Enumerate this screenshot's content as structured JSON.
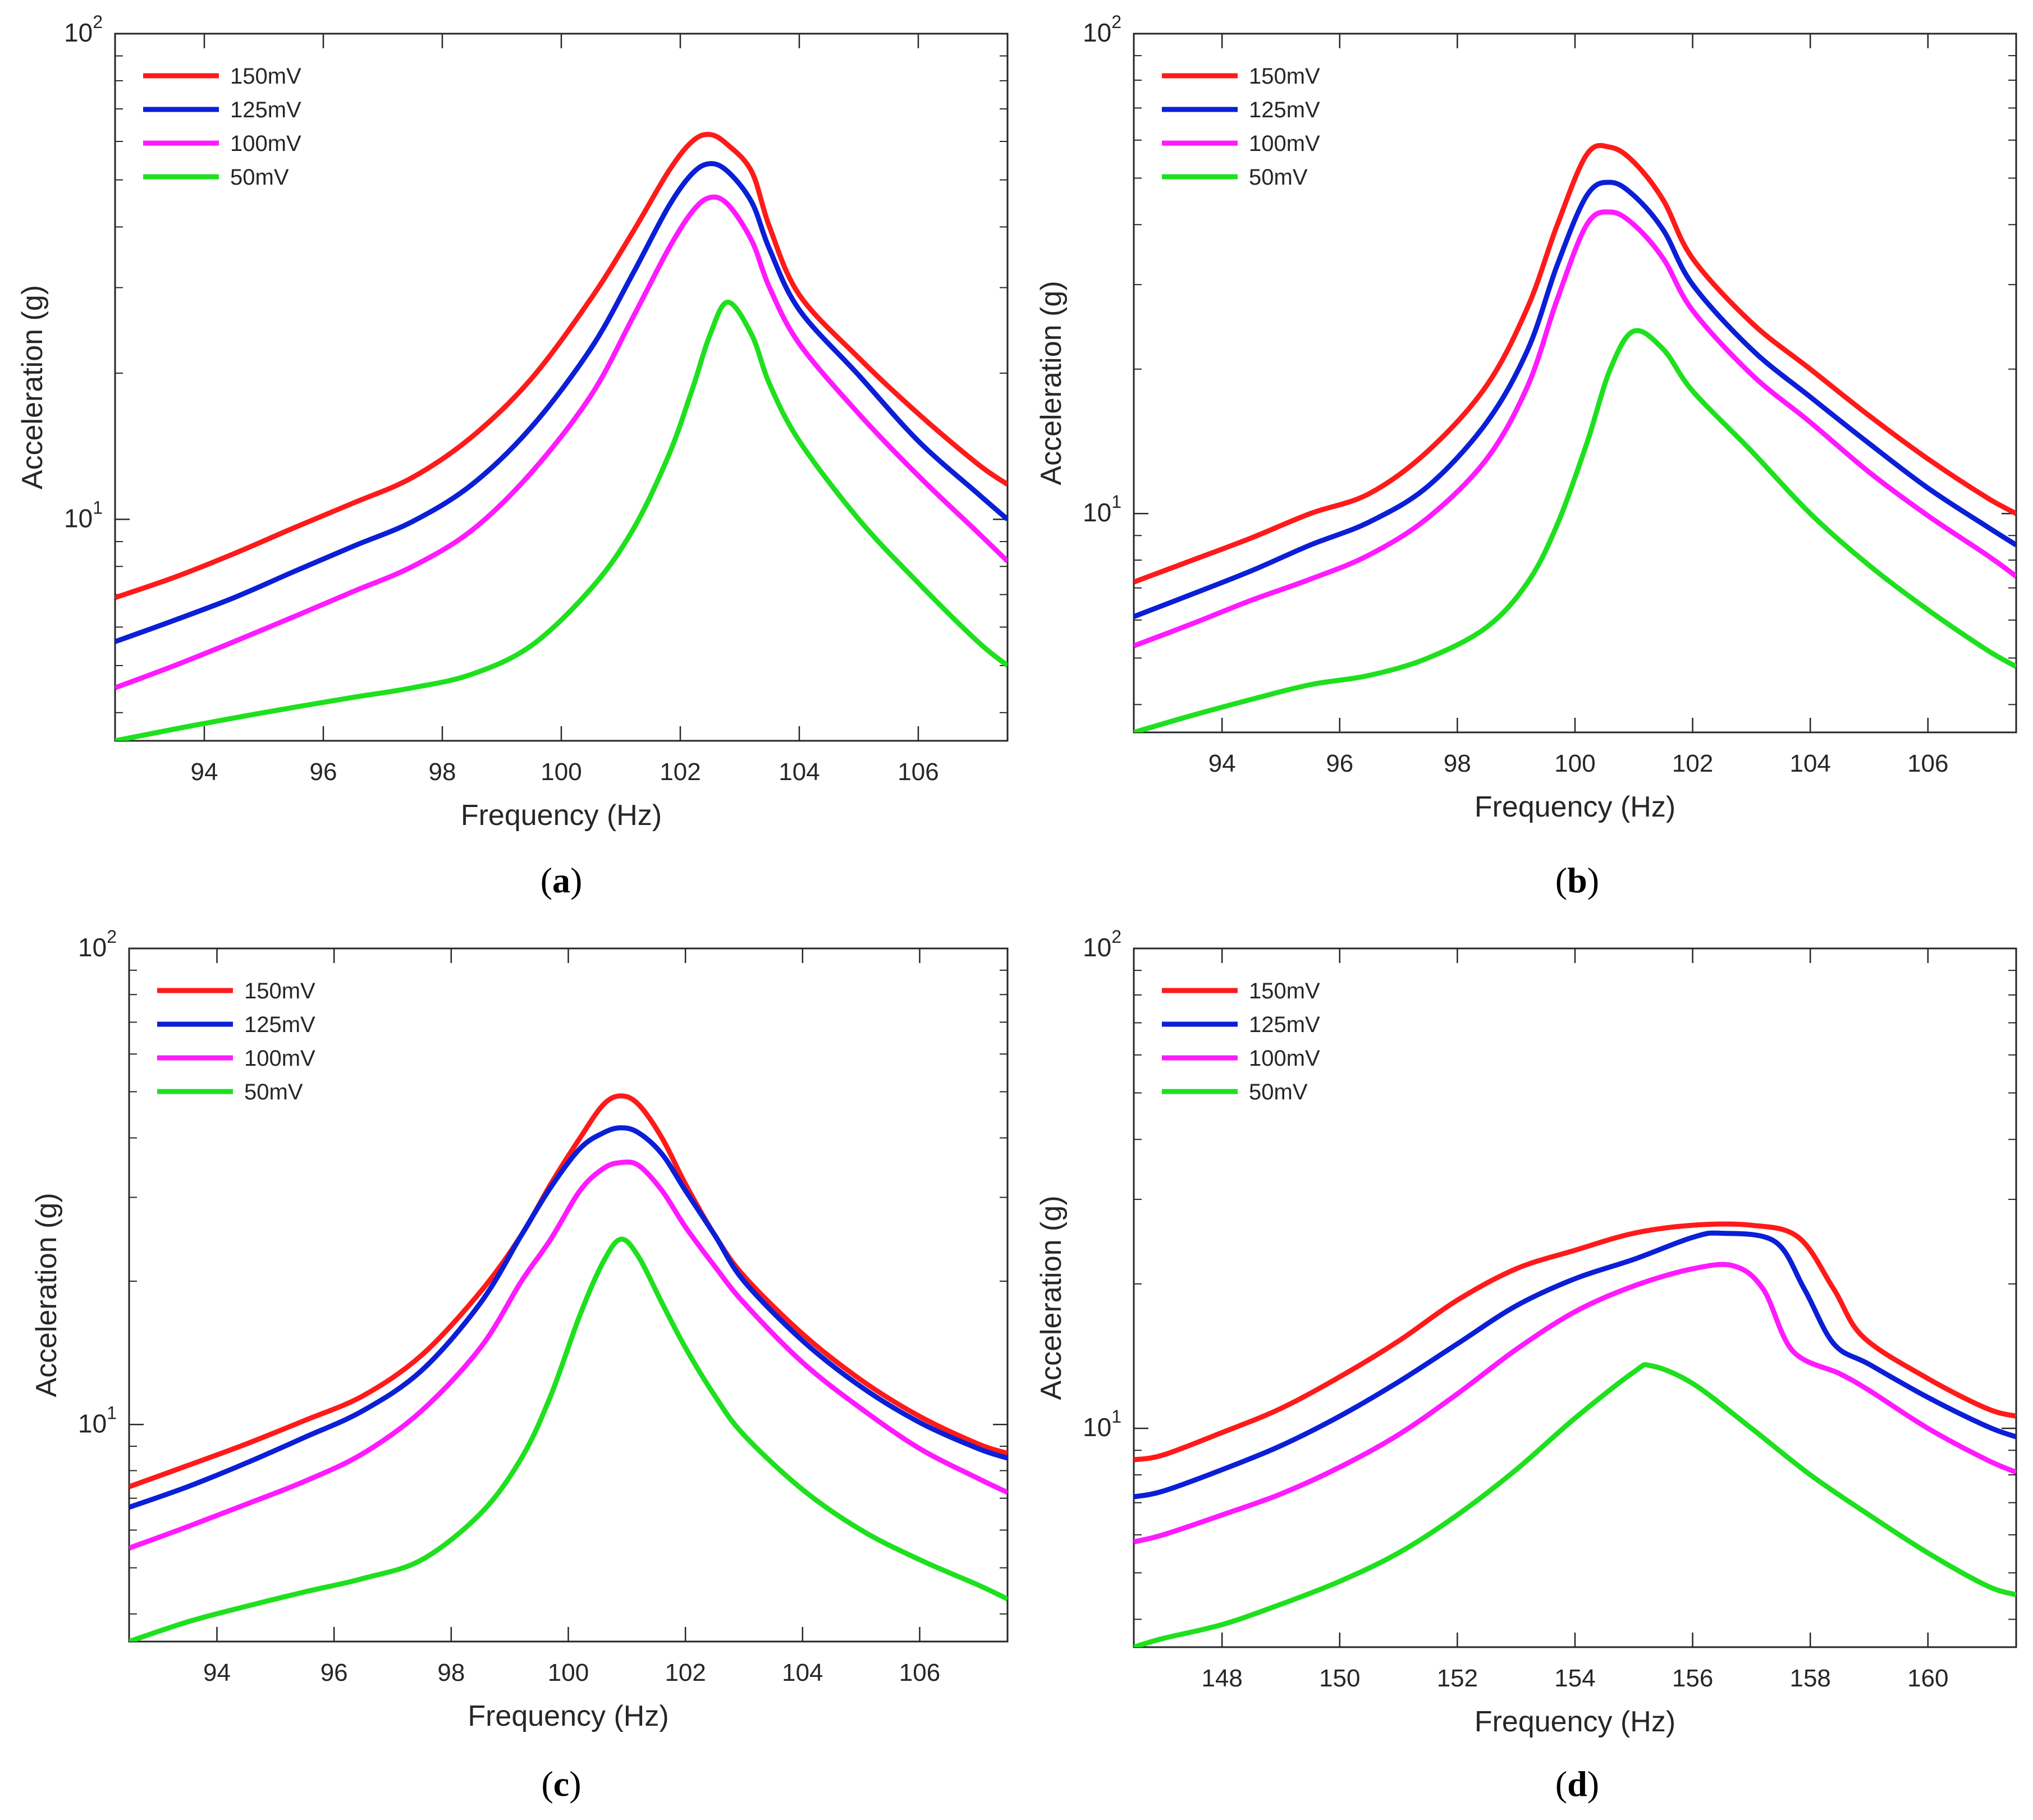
{
  "figure": {
    "panels": [
      {
        "caption_letter": "a"
      },
      {
        "caption_letter": "b"
      },
      {
        "caption_letter": "c"
      },
      {
        "caption_letter": "d"
      }
    ]
  },
  "chart_data": [
    {
      "type": "line",
      "panel": "a",
      "xlabel": "Frequency (Hz)",
      "ylabel": "Acceleration (g)",
      "yscale": "log",
      "xlim": [
        92.5,
        107.5
      ],
      "ylim": [
        3.5,
        100
      ],
      "xticks": [
        94,
        96,
        98,
        100,
        102,
        104,
        106
      ],
      "yticks": [
        {
          "value": 10,
          "base": "10",
          "exp": "1"
        },
        {
          "value": 100,
          "base": "10",
          "exp": "2"
        }
      ],
      "legend_position": "top-left",
      "series": [
        {
          "name": "150mV",
          "color": "#ff1a1a",
          "x": [
            92.5,
            93.5,
            94.5,
            95.5,
            96.5,
            97.5,
            98.5,
            99.5,
            100.5,
            101.2,
            101.8,
            102.2,
            102.5,
            102.8,
            103.2,
            103.5,
            104,
            105,
            106,
            107,
            107.5
          ],
          "y": [
            6.9,
            7.6,
            8.5,
            9.6,
            10.8,
            12.2,
            14.8,
            19.5,
            28.5,
            39,
            52,
            60,
            62,
            59,
            52,
            40,
            29,
            21.5,
            16.5,
            13,
            11.8
          ]
        },
        {
          "name": "125mV",
          "color": "#0a1fd6",
          "x": [
            92.5,
            93.5,
            94.5,
            95.5,
            96.5,
            97.5,
            98.5,
            99.5,
            100.5,
            101.2,
            101.8,
            102.2,
            102.5,
            102.8,
            103.2,
            103.5,
            104,
            105,
            106,
            107,
            107.5
          ],
          "y": [
            5.6,
            6.2,
            6.9,
            7.8,
            8.8,
            9.9,
            11.8,
            15.5,
            22.5,
            32,
            44,
            51.5,
            54,
            52,
            45,
            36,
            27,
            19.8,
            14.5,
            11.3,
            10
          ]
        },
        {
          "name": "100mV",
          "color": "#ff1aff",
          "x": [
            92.5,
            93.5,
            94.5,
            95.5,
            96.5,
            97.5,
            98.5,
            99.5,
            100.5,
            101.2,
            101.8,
            102.2,
            102.5,
            102.8,
            103.2,
            103.5,
            104,
            105,
            106,
            107,
            107.5
          ],
          "y": [
            4.5,
            5,
            5.6,
            6.3,
            7.1,
            8,
            9.5,
            12.5,
            18,
            26,
            36,
            43,
            46,
            44.5,
            37.5,
            30,
            23,
            16.5,
            12.3,
            9.4,
            8.2
          ]
        },
        {
          "name": "50mV",
          "color": "#1ee01e",
          "x": [
            92.5,
            93.5,
            94.5,
            95.5,
            96.5,
            97.5,
            98.5,
            99.5,
            100.5,
            101.2,
            101.8,
            102.2,
            102.5,
            102.8,
            103.2,
            103.5,
            104,
            105,
            106,
            107,
            107.5
          ],
          "y": [
            3.5,
            3.7,
            3.9,
            4.1,
            4.3,
            4.5,
            4.8,
            5.5,
            7.2,
            9.5,
            13.5,
            18.5,
            24,
            28,
            24,
            19,
            14.5,
            10,
            7.4,
            5.6,
            5
          ]
        }
      ]
    },
    {
      "type": "line",
      "panel": "b",
      "xlabel": "Frequency (Hz)",
      "ylabel": "Acceleration (g)",
      "yscale": "log",
      "xlim": [
        92.5,
        107.5
      ],
      "ylim": [
        3.5,
        100
      ],
      "xticks": [
        94,
        96,
        98,
        100,
        102,
        104,
        106
      ],
      "yticks": [
        {
          "value": 10,
          "base": "10",
          "exp": "1"
        },
        {
          "value": 100,
          "base": "10",
          "exp": "2"
        }
      ],
      "legend_position": "top-left",
      "series": [
        {
          "name": "150mV",
          "color": "#ff1a1a",
          "x": [
            92.5,
            93.5,
            94.5,
            95.5,
            96.5,
            97.5,
            98.5,
            99.2,
            99.7,
            100.2,
            100.6,
            101,
            101.5,
            102,
            103,
            104,
            105,
            106,
            107,
            107.5
          ],
          "y": [
            7.2,
            8,
            8.9,
            10,
            11,
            13.5,
            18.5,
            27,
            40,
            56,
            58,
            54,
            45,
            34,
            25,
            20,
            16,
            13,
            10.8,
            10
          ]
        },
        {
          "name": "125mV",
          "color": "#0a1fd6",
          "x": [
            92.5,
            93.5,
            94.5,
            95.5,
            96.5,
            97.5,
            98.5,
            99.2,
            99.7,
            100.2,
            100.6,
            101,
            101.5,
            102,
            103,
            104,
            105,
            106,
            107,
            107.5
          ],
          "y": [
            6.1,
            6.8,
            7.6,
            8.6,
            9.6,
            11.4,
            15.5,
            22,
            33,
            46,
            49,
            46,
            39,
            30,
            22,
            17.5,
            14,
            11.3,
            9.4,
            8.6
          ]
        },
        {
          "name": "100mV",
          "color": "#ff1aff",
          "x": [
            92.5,
            93.5,
            94.5,
            95.5,
            96.5,
            97.5,
            98.5,
            99.2,
            99.7,
            100.2,
            100.6,
            101,
            101.5,
            102,
            103,
            104,
            105,
            106,
            107,
            107.5
          ],
          "y": [
            5.3,
            5.9,
            6.6,
            7.3,
            8.2,
            9.8,
            13,
            18.5,
            28,
            40,
            42.5,
            40,
            34,
            26.5,
            19.5,
            15.5,
            12.2,
            9.9,
            8.2,
            7.4
          ]
        },
        {
          "name": "50mV",
          "color": "#1ee01e",
          "x": [
            92.5,
            93.5,
            94.5,
            95.5,
            96.5,
            97.5,
            98.5,
            99.2,
            99.7,
            100.2,
            100.6,
            101,
            101.5,
            102,
            103,
            104,
            105,
            106,
            107,
            107.5
          ],
          "y": [
            3.5,
            3.8,
            4.1,
            4.4,
            4.6,
            5,
            5.8,
            7.2,
            9.5,
            14,
            20,
            24,
            22,
            18,
            13.5,
            10,
            7.8,
            6.3,
            5.2,
            4.8
          ]
        }
      ]
    },
    {
      "type": "line",
      "panel": "c",
      "xlabel": "Frequency (Hz)",
      "ylabel": "Acceleration (g)",
      "yscale": "log",
      "xlim": [
        92.5,
        107.5
      ],
      "ylim": [
        3.5,
        100
      ],
      "xticks": [
        94,
        96,
        98,
        100,
        102,
        104,
        106
      ],
      "yticks": [
        {
          "value": 10,
          "base": "10",
          "exp": "1"
        },
        {
          "value": 100,
          "base": "10",
          "exp": "2"
        }
      ],
      "legend_position": "top-left",
      "series": [
        {
          "name": "150mV",
          "color": "#ff1a1a",
          "x": [
            92.5,
            93.5,
            94.5,
            95.5,
            96.5,
            97.5,
            98.5,
            99.2,
            99.7,
            100.2,
            100.6,
            100.9,
            101.2,
            101.6,
            102,
            102.5,
            103,
            104,
            105,
            106,
            107,
            107.5
          ],
          "y": [
            7.4,
            8.2,
            9.1,
            10.2,
            11.5,
            14,
            19,
            25,
            32,
            40,
            47,
            49,
            47,
            40,
            32,
            25,
            20.5,
            15.5,
            12.4,
            10.4,
            9.1,
            8.7
          ]
        },
        {
          "name": "125mV",
          "color": "#0a1fd6",
          "x": [
            92.5,
            93.5,
            94.5,
            95.5,
            96.5,
            97.5,
            98.5,
            99.2,
            99.7,
            100.2,
            100.6,
            100.9,
            101.2,
            101.6,
            102,
            102.5,
            103,
            104,
            105,
            106,
            107,
            107.5
          ],
          "y": [
            6.7,
            7.4,
            8.3,
            9.4,
            10.7,
            13,
            18,
            25,
            31.5,
            38,
            41,
            42,
            41,
            37,
            31,
            25,
            20,
            15,
            12,
            10.1,
            8.9,
            8.5
          ]
        },
        {
          "name": "100mV",
          "color": "#ff1aff",
          "x": [
            92.5,
            93.5,
            94.5,
            95.5,
            96.5,
            97.5,
            98.5,
            99.2,
            99.7,
            100.2,
            100.6,
            100.9,
            101.2,
            101.6,
            102,
            102.5,
            103,
            104,
            105,
            106,
            107,
            107.5
          ],
          "y": [
            5.5,
            6.1,
            6.8,
            7.6,
            8.7,
            10.7,
            14.5,
            20,
            24.5,
            31,
            34.5,
            35.5,
            35,
            31,
            26,
            21.5,
            18,
            13.5,
            10.8,
            8.9,
            7.7,
            7.2
          ]
        },
        {
          "name": "50mV",
          "color": "#1ee01e",
          "x": [
            92.5,
            93.5,
            94.5,
            95.5,
            96.5,
            97.5,
            98.5,
            99.2,
            99.7,
            100.2,
            100.6,
            100.9,
            101.2,
            101.6,
            102,
            102.5,
            103,
            104,
            105,
            106,
            107,
            107.5
          ],
          "y": [
            3.5,
            3.85,
            4.15,
            4.45,
            4.75,
            5.2,
            6.5,
            8.5,
            11.5,
            17,
            22,
            24.5,
            22.5,
            18,
            14.5,
            11.5,
            9.5,
            7.3,
            6,
            5.2,
            4.6,
            4.3
          ]
        }
      ]
    },
    {
      "type": "line",
      "panel": "d",
      "xlabel": "Frequency (Hz)",
      "ylabel": "Acceleration (g)",
      "yscale": "log",
      "xlim": [
        146.5,
        161.5
      ],
      "ylim": [
        3.5,
        100
      ],
      "xticks": [
        148,
        150,
        152,
        154,
        156,
        158,
        160
      ],
      "yticks": [
        {
          "value": 10,
          "base": "10",
          "exp": "1"
        },
        {
          "value": 100,
          "base": "10",
          "exp": "2"
        }
      ],
      "legend_position": "top-left",
      "series": [
        {
          "name": "150mV",
          "color": "#ff1a1a",
          "x": [
            146.5,
            147,
            148,
            149,
            150,
            151,
            152,
            153,
            154,
            155,
            156,
            157,
            157.8,
            158.4,
            158.9,
            160,
            161,
            161.5
          ],
          "y": [
            8.6,
            8.8,
            9.8,
            11,
            12.8,
            15.2,
            18.5,
            21.5,
            23.5,
            25.5,
            26.5,
            26.5,
            25,
            19.5,
            15.5,
            12.7,
            11,
            10.6
          ]
        },
        {
          "name": "125mV",
          "color": "#0a1fd6",
          "x": [
            146.5,
            147,
            148,
            149,
            150,
            151,
            152,
            153,
            154,
            155,
            156,
            156.5,
            157.4,
            157.9,
            158.4,
            159,
            160,
            161,
            161.5
          ],
          "y": [
            7.2,
            7.4,
            8.2,
            9.2,
            10.6,
            12.5,
            15,
            18,
            20.5,
            22.5,
            25,
            25.5,
            24.5,
            19.5,
            15,
            13.6,
            11.6,
            10.1,
            9.6
          ]
        },
        {
          "name": "100mV",
          "color": "#ff1aff",
          "x": [
            146.5,
            147,
            148,
            149,
            150,
            151,
            152,
            153,
            154,
            155,
            156,
            156.7,
            157.2,
            157.7,
            158.5,
            159,
            160,
            161,
            161.5
          ],
          "y": [
            5.8,
            6,
            6.6,
            7.3,
            8.3,
            9.7,
            11.8,
            14.6,
            17.5,
            19.8,
            21.5,
            21.8,
            19.5,
            14.5,
            13,
            12,
            10,
            8.6,
            8.1
          ]
        },
        {
          "name": "50mV",
          "color": "#1ee01e",
          "x": [
            146.5,
            147,
            148,
            149,
            150,
            151,
            152,
            153,
            154,
            155,
            155.3,
            156,
            157,
            158,
            159,
            160,
            161,
            161.5
          ],
          "y": [
            3.5,
            3.65,
            3.9,
            4.3,
            4.8,
            5.5,
            6.6,
            8.2,
            10.5,
            13.1,
            13.5,
            12.4,
            10,
            8,
            6.6,
            5.5,
            4.7,
            4.5
          ]
        }
      ]
    }
  ]
}
